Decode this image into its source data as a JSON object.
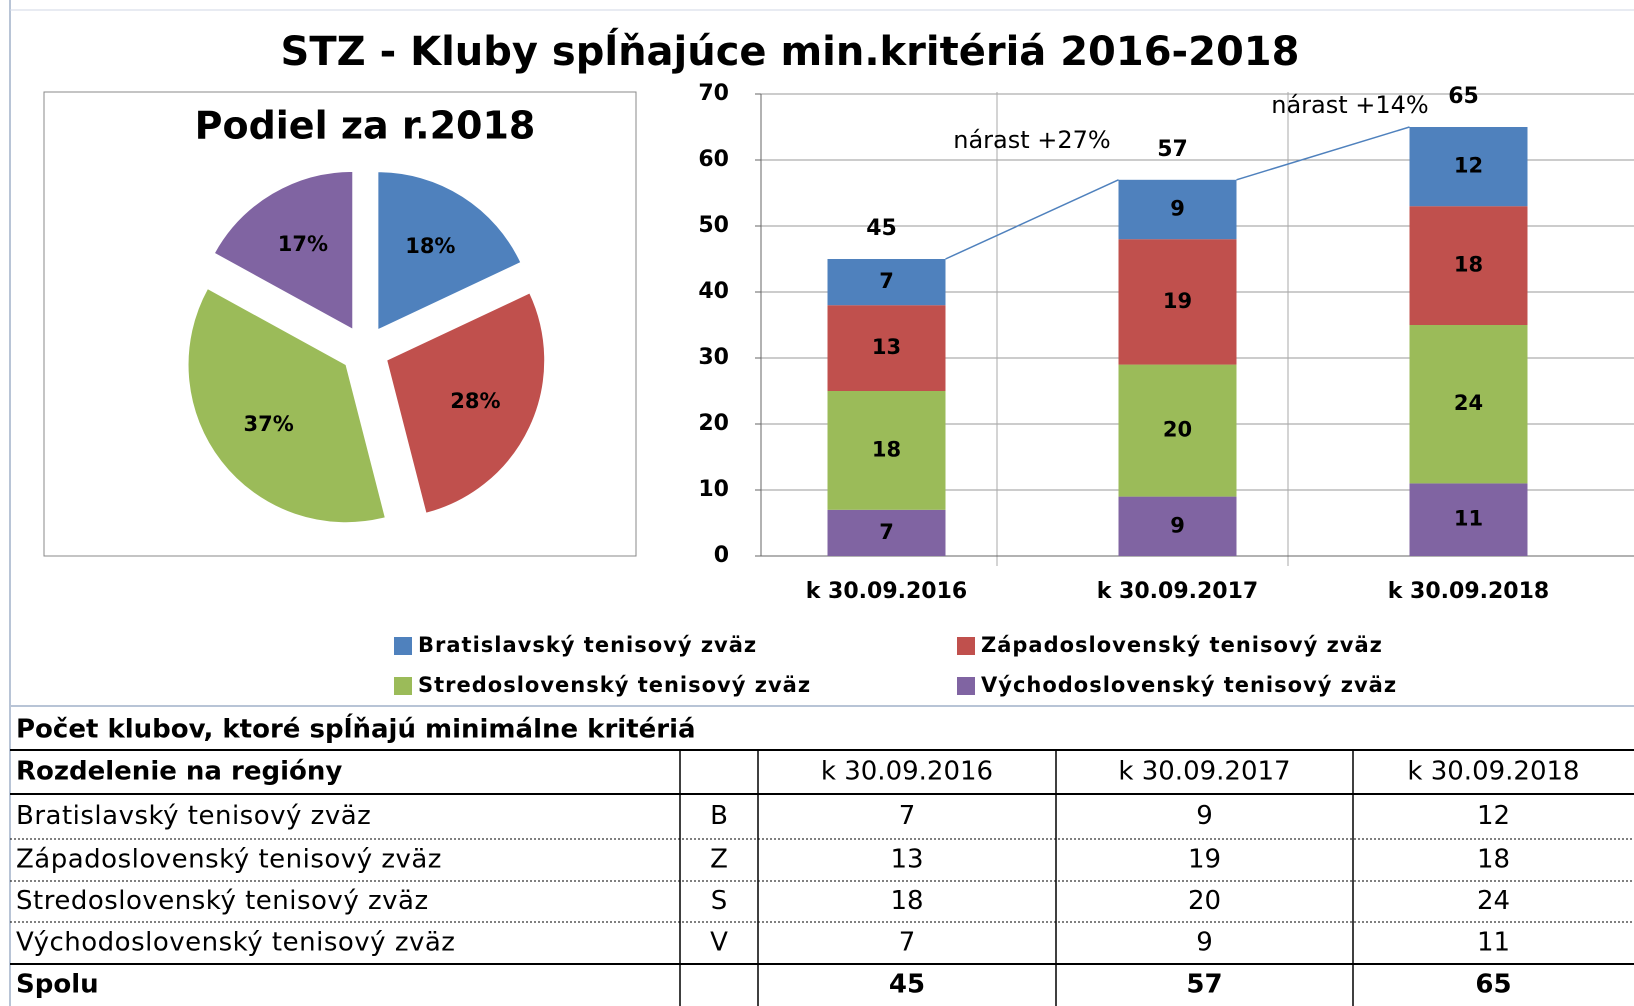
{
  "title": "STZ - Kluby spĺňajúce min.kritériá 2016-2018",
  "chart_data": [
    {
      "type": "pie",
      "title": "Podiel za r.2018",
      "values": [
        18,
        28,
        37,
        17
      ],
      "value_labels": [
        "18%",
        "28%",
        "37%",
        "17%"
      ],
      "colors": [
        "#4f81bd",
        "#c0504d",
        "#9bbb59",
        "#8064a2"
      ],
      "exploded": true
    },
    {
      "type": "stacked_bar",
      "categories": [
        "k 30.09.2016",
        "k 30.09.2017",
        "k 30.09.2018"
      ],
      "series": [
        {
          "name": "Bratislavský tenisový zväz",
          "color": "#4f81bd",
          "values": [
            7,
            9,
            12
          ]
        },
        {
          "name": "Západoslovenský tenisový zväz",
          "color": "#c0504d",
          "values": [
            13,
            19,
            18
          ]
        },
        {
          "name": "Stredoslovenský tenisový zväz",
          "color": "#9bbb59",
          "values": [
            18,
            20,
            24
          ]
        },
        {
          "name": "Východoslovenský tenisový zväz",
          "color": "#8064a2",
          "values": [
            7,
            9,
            11
          ]
        }
      ],
      "totals": [
        45,
        57,
        65
      ],
      "annotations": [
        "nárast +27%",
        "nárast +14%"
      ],
      "ylim": [
        0,
        70
      ],
      "yticks": [
        0,
        10,
        20,
        30,
        40,
        50,
        60,
        70
      ],
      "grid": true,
      "legend": "bottom"
    }
  ],
  "table": {
    "title": "Počet klubov, ktoré spĺňajú minimálne kritériá",
    "header_label": "Rozdelenie na regióny",
    "columns": [
      "k 30.09.2016",
      "k 30.09.2017",
      "k 30.09.2018"
    ],
    "rows": [
      [
        "Bratislavský tenisový zväz",
        "B",
        7,
        9,
        12
      ],
      [
        "Západoslovenský tenisový zväz",
        "Z",
        13,
        19,
        18
      ],
      [
        "Stredoslovenský tenisový zväz",
        "S",
        18,
        20,
        24
      ],
      [
        "Východoslovenský tenisový zväz",
        "V",
        7,
        9,
        11
      ]
    ],
    "total": [
      "Spolu",
      45,
      57,
      65
    ]
  }
}
